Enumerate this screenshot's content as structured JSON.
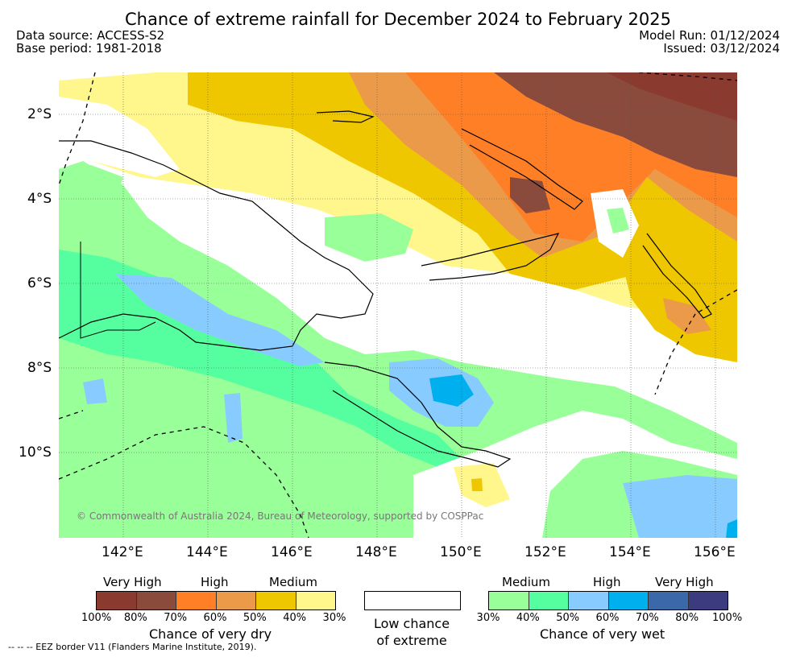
{
  "title": "Chance of extreme rainfall for December 2024 to February 2025",
  "header": {
    "data_source": "Data source: ACCESS-S2",
    "base_period": "Base period: 1981-2018",
    "model_run": "Model Run: 01/12/2024",
    "issued": "Issued: 03/12/2024"
  },
  "map": {
    "lat_labels": [
      "2°S",
      "4°S",
      "6°S",
      "8°S",
      "10°S"
    ],
    "lon_labels": [
      "142°E",
      "144°E",
      "146°E",
      "148°E",
      "150°E",
      "152°E",
      "154°E",
      "156°E"
    ],
    "copyright": "© Commonwealth of Australia 2024, Bureau of Meteorology, supported by COSPPac"
  },
  "legend": {
    "dry": {
      "categories": [
        "Very High",
        "High",
        "Medium"
      ],
      "colors": [
        "#8b3a2f",
        "#8b4b3c",
        "#ff7f27",
        "#eb9a4a",
        "#eec700",
        "#fff68c"
      ],
      "ticks": [
        "100%",
        "80%",
        "70%",
        "60%",
        "50%",
        "40%",
        "30%"
      ],
      "caption": "Chance of very dry"
    },
    "low": {
      "caption_line1": "Low chance",
      "caption_line2": "of extreme"
    },
    "wet": {
      "categories": [
        "Medium",
        "High",
        "Very High"
      ],
      "colors": [
        "#99ff99",
        "#55ff9f",
        "#88ccff",
        "#00b0ee",
        "#3a68a8",
        "#3d3b80"
      ],
      "ticks": [
        "30%",
        "40%",
        "50%",
        "60%",
        "70%",
        "80%",
        "100%"
      ],
      "caption": "Chance of very wet"
    },
    "eez_note": "--  --  -- EEZ border V11 (Flanders Marine Institute, 2019)."
  }
}
